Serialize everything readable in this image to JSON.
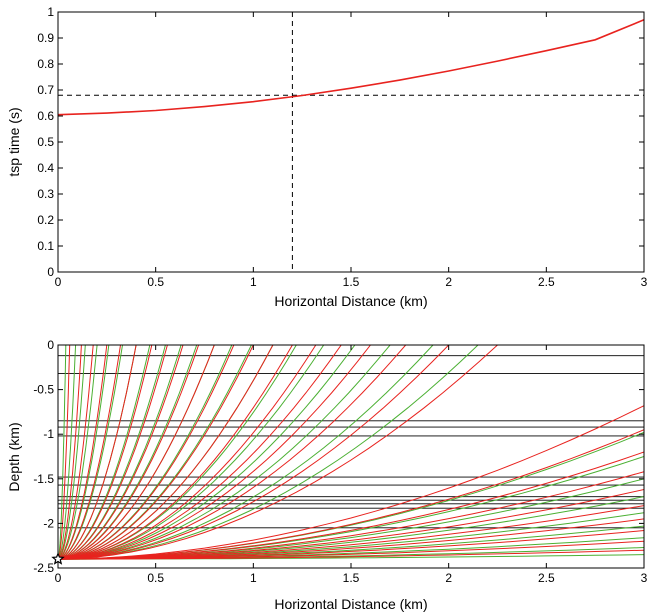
{
  "chart_data": [
    {
      "type": "line",
      "xlabel": "Horizontal Distance (km)",
      "ylabel": "tsp time (s)",
      "xlim": [
        0,
        3
      ],
      "ylim": [
        0,
        1
      ],
      "xticks": [
        "0",
        "0.5",
        "1",
        "1.5",
        "2",
        "2.5",
        "3"
      ],
      "yticks": [
        "0",
        "0.1",
        "0.2",
        "0.3",
        "0.4",
        "0.5",
        "0.6",
        "0.7",
        "0.8",
        "0.9",
        "1"
      ],
      "grid": false,
      "series": [
        {
          "color": "#e8231f",
          "x": [
            0,
            0.25,
            0.5,
            0.75,
            1.0,
            1.25,
            1.5,
            1.75,
            2.0,
            2.25,
            2.5,
            2.75,
            3.0
          ],
          "y": [
            0.605,
            0.611,
            0.621,
            0.636,
            0.655,
            0.679,
            0.707,
            0.738,
            0.773,
            0.811,
            0.851,
            0.893,
            0.97
          ]
        }
      ],
      "reference_lines": {
        "vertical_x": 1.2,
        "horizontal_y": 0.68,
        "style": "dashed",
        "color": "#000000"
      }
    },
    {
      "type": "line",
      "xlabel": "Horizontal Distance (km)",
      "ylabel": "Depth (km)",
      "xlim": [
        0,
        3
      ],
      "ylim": [
        -2.5,
        0
      ],
      "xticks": [
        "0",
        "0.5",
        "1",
        "1.5",
        "2",
        "2.5",
        "3"
      ],
      "yticks": [
        "-2.5",
        "-2",
        "-1.5",
        "-1",
        "-0.5",
        "0"
      ],
      "grid": false,
      "source": {
        "x": 0,
        "y": -2.4,
        "marker": "star"
      },
      "layer_depths": [
        -0.12,
        -0.32,
        -0.85,
        -0.92,
        -1.02,
        -1.48,
        -1.57,
        -1.7,
        -1.74,
        -1.78,
        -1.83,
        -2.05
      ],
      "ray_colors": {
        "p_wave": "#e8231f",
        "s_wave": "#4bb033"
      },
      "ray_surface_x": {
        "p_wave": [
          0.06,
          0.12,
          0.18,
          0.25,
          0.32,
          0.4,
          0.48,
          0.56,
          0.64,
          0.72,
          0.8,
          0.9,
          1.0,
          1.1,
          1.2,
          1.32,
          1.45,
          1.6,
          1.78,
          2.0,
          2.25
        ],
        "s_wave": [
          0.04,
          0.09,
          0.14,
          0.2,
          0.26,
          0.33,
          0.4,
          0.47,
          0.55,
          0.63,
          0.71,
          0.8,
          0.89,
          0.99,
          1.1,
          1.22,
          1.36,
          1.52,
          1.7,
          1.92,
          2.15
        ]
      },
      "ray_edge_y": {
        "p_wave": [
          -0.68,
          -0.95,
          -1.2,
          -1.42,
          -1.62,
          -1.8,
          -1.95,
          -2.08,
          -2.2,
          -2.3
        ],
        "s_wave": [
          -0.98,
          -1.25,
          -1.5,
          -1.7,
          -1.88,
          -2.03,
          -2.16,
          -2.27,
          -2.35
        ]
      }
    }
  ]
}
